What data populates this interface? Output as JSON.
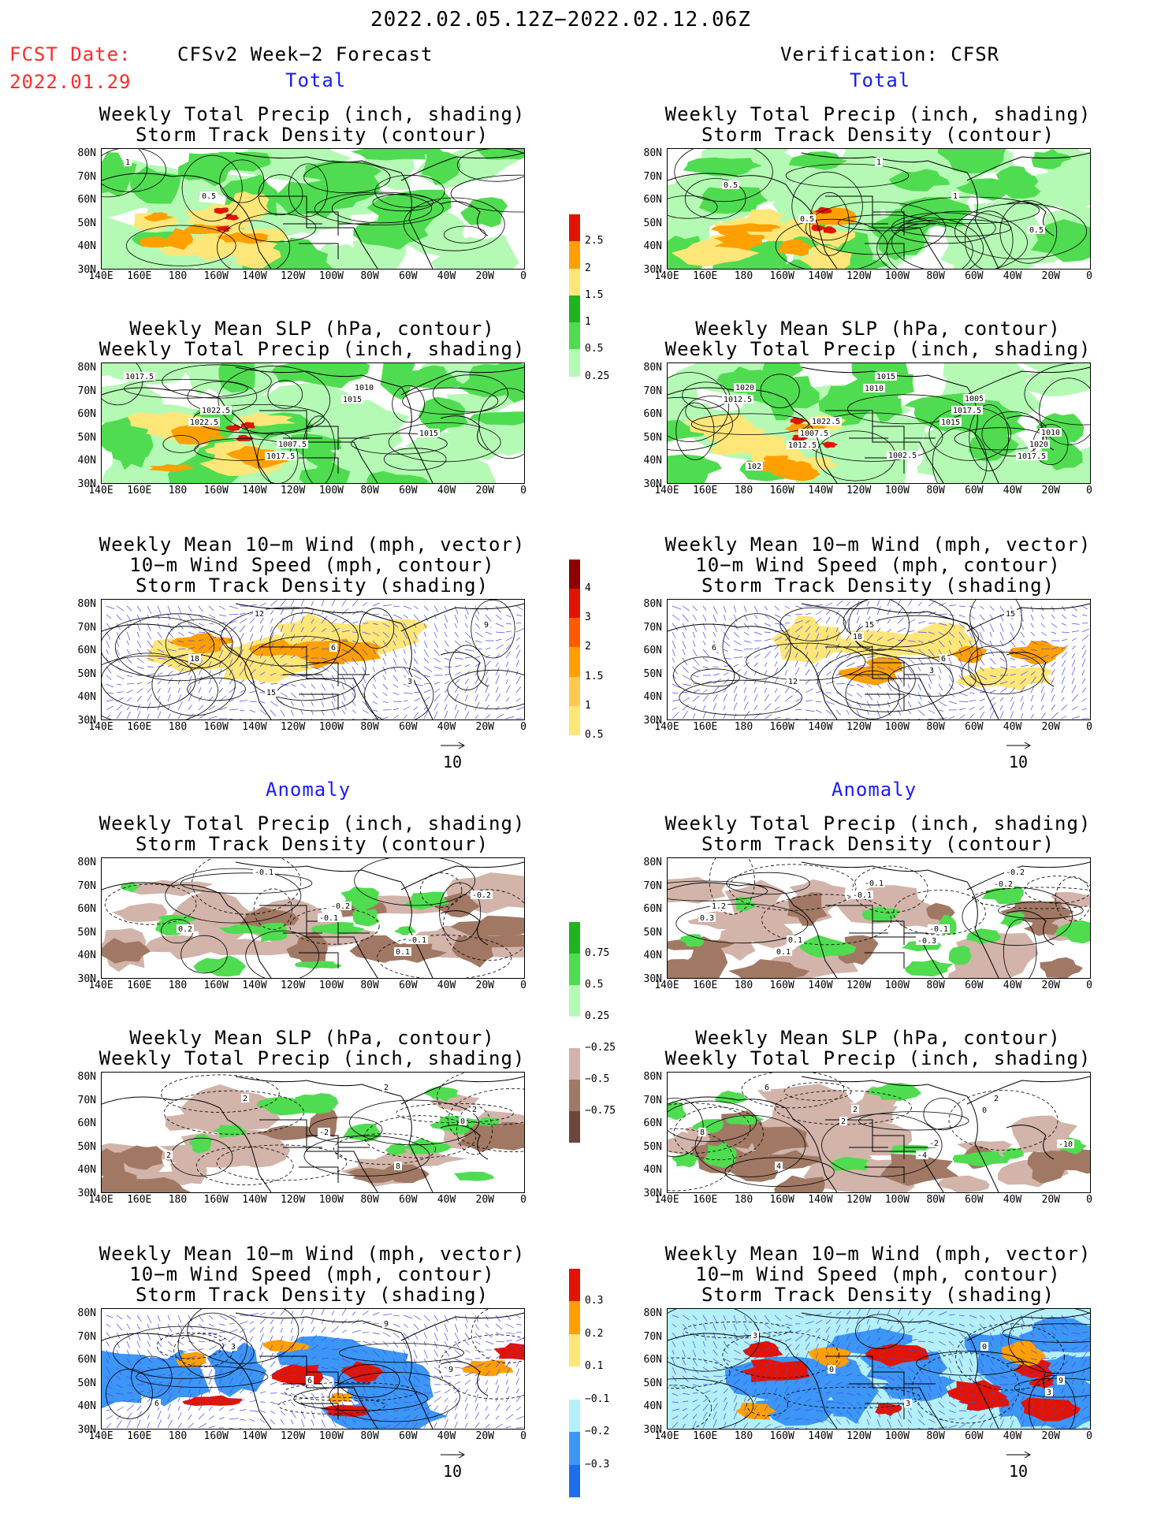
{
  "header": {
    "period": "2022.02.05.12Z−2022.02.12.06Z",
    "fcst_label": "FCST Date:",
    "fcst_date": "2022.01.29",
    "left_title": "CFSv2 Week−2 Forecast",
    "right_title": "Verification: CFSR",
    "total_label": "Total",
    "anomaly_label": "Anomaly"
  },
  "panel_titles": {
    "precip_track": [
      "Weekly Total Precip (inch, shading)",
      "Storm Track Density (contour)"
    ],
    "slp_precip": [
      "Weekly Mean SLP (hPa, contour)",
      "Weekly Total Precip (inch, shading)"
    ],
    "wind_track": [
      "Weekly Mean 10−m Wind (mph, vector)",
      "10−m Wind Speed (mph, contour)",
      "Storm Track Density (shading)"
    ]
  },
  "axes": {
    "lat_labels": [
      "80N",
      "70N",
      "60N",
      "50N",
      "40N",
      "30N"
    ],
    "lon_labels": [
      "140E",
      "160E",
      "180",
      "160W",
      "140W",
      "120W",
      "100W",
      "80W",
      "60W",
      "40W",
      "20W",
      "0"
    ]
  },
  "vector_ref": "10",
  "colorbars": {
    "precip_total": [
      "0.25",
      "0.5",
      "1",
      "1.5",
      "2",
      "2.5"
    ],
    "track_total": [
      "0.5",
      "1",
      "1.5",
      "2",
      "3",
      "4"
    ],
    "precip_anom": [
      "0.75",
      "0.5",
      "0.25",
      "−0.25",
      "−0.5",
      "−0.75"
    ],
    "track_anom": [
      "0.3",
      "0.2",
      "0.1",
      "−0.1",
      "−0.2",
      "−0.3"
    ]
  },
  "colors": {
    "precip_green_light": "#b4fab4",
    "precip_green": "#50dc50",
    "precip_green_dark": "#1eb41e",
    "precip_yellow": "#ffe678",
    "precip_orange": "#ffa000",
    "precip_red": "#e11400",
    "anom_brown_light": "#d2b4aa",
    "anom_brown": "#a07864",
    "anom_brown_dark": "#6e463c",
    "anom_blue_light": "#b4f0fa",
    "anom_blue": "#3c96f5",
    "anom_blue_dark": "#1e6eeb",
    "wind_vector": "#4646ff",
    "title_blue": "#1a1aff",
    "date_red": "#ff2a2a"
  },
  "contour_labels": {
    "L1": [
      "1",
      "0.5"
    ],
    "R1": [
      "0.5",
      "0.5",
      "1",
      "1",
      "0.5"
    ],
    "L2": [
      "1022.5",
      "1017.5",
      "1015",
      "1015",
      "1017.5",
      "1022.5",
      "1007.5",
      "1010"
    ],
    "R2": [
      "1012.5",
      "1010",
      "1015",
      "1017.5",
      "1012.5",
      "1007.5",
      "1015",
      "1017.5",
      "1020",
      "1020",
      "1022.5",
      "1002.5",
      "1005",
      "1010",
      "102"
    ],
    "L3": [
      "12",
      "6",
      "3",
      "9",
      "18",
      "15"
    ],
    "R3": [
      "18",
      "3",
      "15",
      "6",
      "12",
      "15",
      "6"
    ],
    "L4": [
      "-0.1",
      "0.1",
      "-0.2",
      "0.2",
      "-0.1",
      "-0.2",
      "-0.1"
    ],
    "R4": [
      "-0.3",
      "-0.2",
      "0.3",
      "0.1",
      "-0.1",
      "-0.1",
      "-0.2",
      "1.2",
      "0.1",
      "-0.1"
    ],
    "L5": [
      "2",
      "0",
      "2",
      "2",
      "-2",
      "8",
      "2"
    ],
    "R5": [
      "0",
      "-10",
      "6",
      "2",
      "-4",
      "2",
      "8",
      "4",
      "2",
      "-2"
    ],
    "L6": [
      "9",
      "6",
      "3",
      "6",
      "9"
    ],
    "R6": [
      "3",
      "3",
      "0",
      "3",
      "0",
      "9"
    ]
  }
}
